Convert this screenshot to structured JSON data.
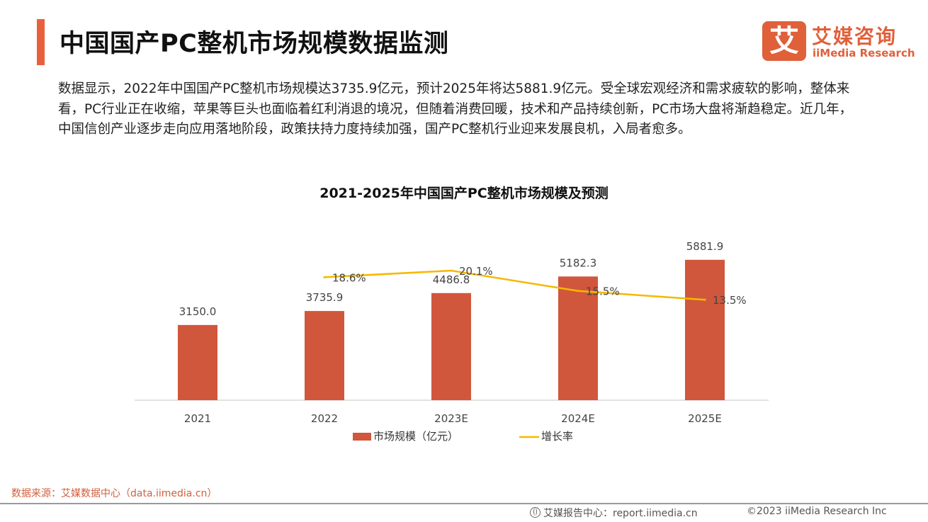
{
  "header": {
    "title": "中国国产PC整机市场规模数据监测"
  },
  "logo": {
    "mark": "艾",
    "cn": "艾媒咨询",
    "en": "iiMedia Research"
  },
  "intro": "数据显示，2022年中国国产PC整机市场规模达3735.9亿元，预计2025年将达5881.9亿元。受全球宏观经济和需求疲软的影响，整体来看，PC行业正在收缩，苹果等巨头也面临着红利消退的境况，但随着消费回暖，技术和产品持续创新，PC市场大盘将渐趋稳定。近几年，中国信创产业逐步走向应用落地阶段，政策扶持力度持续加强，国产PC整机行业迎来发展良机，入局者愈多。",
  "colors": {
    "accent": "#e8603c",
    "bar": "#d0573b",
    "line": "#f5b800"
  },
  "chart_data": {
    "type": "bar",
    "title": "2021-2025年中国国产PC整机市场规模及预测",
    "categories": [
      "2021",
      "2022",
      "2023E",
      "2024E",
      "2025E"
    ],
    "series": [
      {
        "name": "市场规模（亿元）",
        "type": "bar",
        "values": [
          3150.0,
          3735.9,
          4486.8,
          5182.3,
          5881.9
        ],
        "labels": [
          "3150.0",
          "3735.9",
          "4486.8",
          "5182.3",
          "5881.9"
        ]
      },
      {
        "name": "增长率",
        "type": "line",
        "axis": "secondary",
        "values": [
          null,
          18.6,
          20.1,
          15.5,
          13.5
        ],
        "labels": [
          "",
          "18.6%",
          "20.1%",
          "15.5%",
          "13.5%"
        ]
      }
    ],
    "legend_position": "bottom",
    "grid": false
  },
  "footer": {
    "source": "数据来源：艾媒数据中心（data.iimedia.cn）",
    "website": "艾媒报告中心：report.iimedia.cn",
    "copyright": "©2023 iiMedia Research Inc"
  }
}
